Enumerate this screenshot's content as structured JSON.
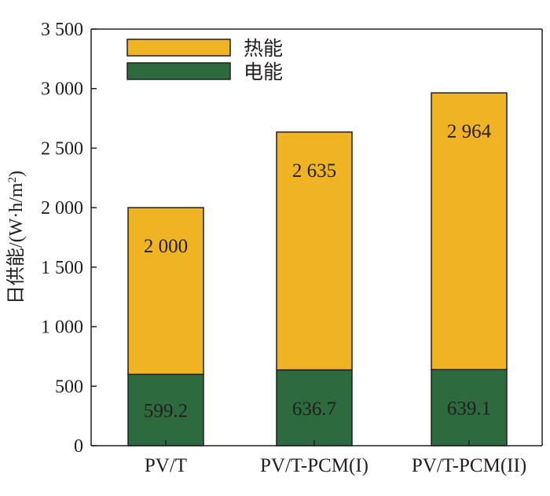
{
  "chart_data": {
    "type": "bar",
    "stacked": true,
    "categories": [
      "PV/T",
      "PV/T-PCM(I)",
      "PV/T-PCM(II)"
    ],
    "series": [
      {
        "name": "电能",
        "values": [
          599.2,
          636.7,
          639.1
        ],
        "labels": [
          "599.2",
          "636.7",
          "639.1"
        ],
        "color": "#2d6a3e"
      },
      {
        "name": "热能",
        "values": [
          1400.8,
          1998.3,
          2324.9
        ],
        "labels": [
          "2 000",
          "2 635",
          "2 964"
        ],
        "color": "#f0b323"
      }
    ],
    "ylabel": "日供能/(W·h/m",
    "ylabel_sup": "2",
    "ylabel_end": ")",
    "ylim": [
      0,
      3500
    ],
    "yticks": [
      0,
      500,
      1000,
      1500,
      2000,
      2500,
      3000,
      3500
    ],
    "ytick_labels": [
      "0",
      "500",
      "1 000",
      "1 500",
      "2 000",
      "2 500",
      "3 000",
      "3 500"
    ],
    "grid": false,
    "legend_position": "top-left",
    "legend_order": [
      "热能",
      "电能"
    ]
  }
}
